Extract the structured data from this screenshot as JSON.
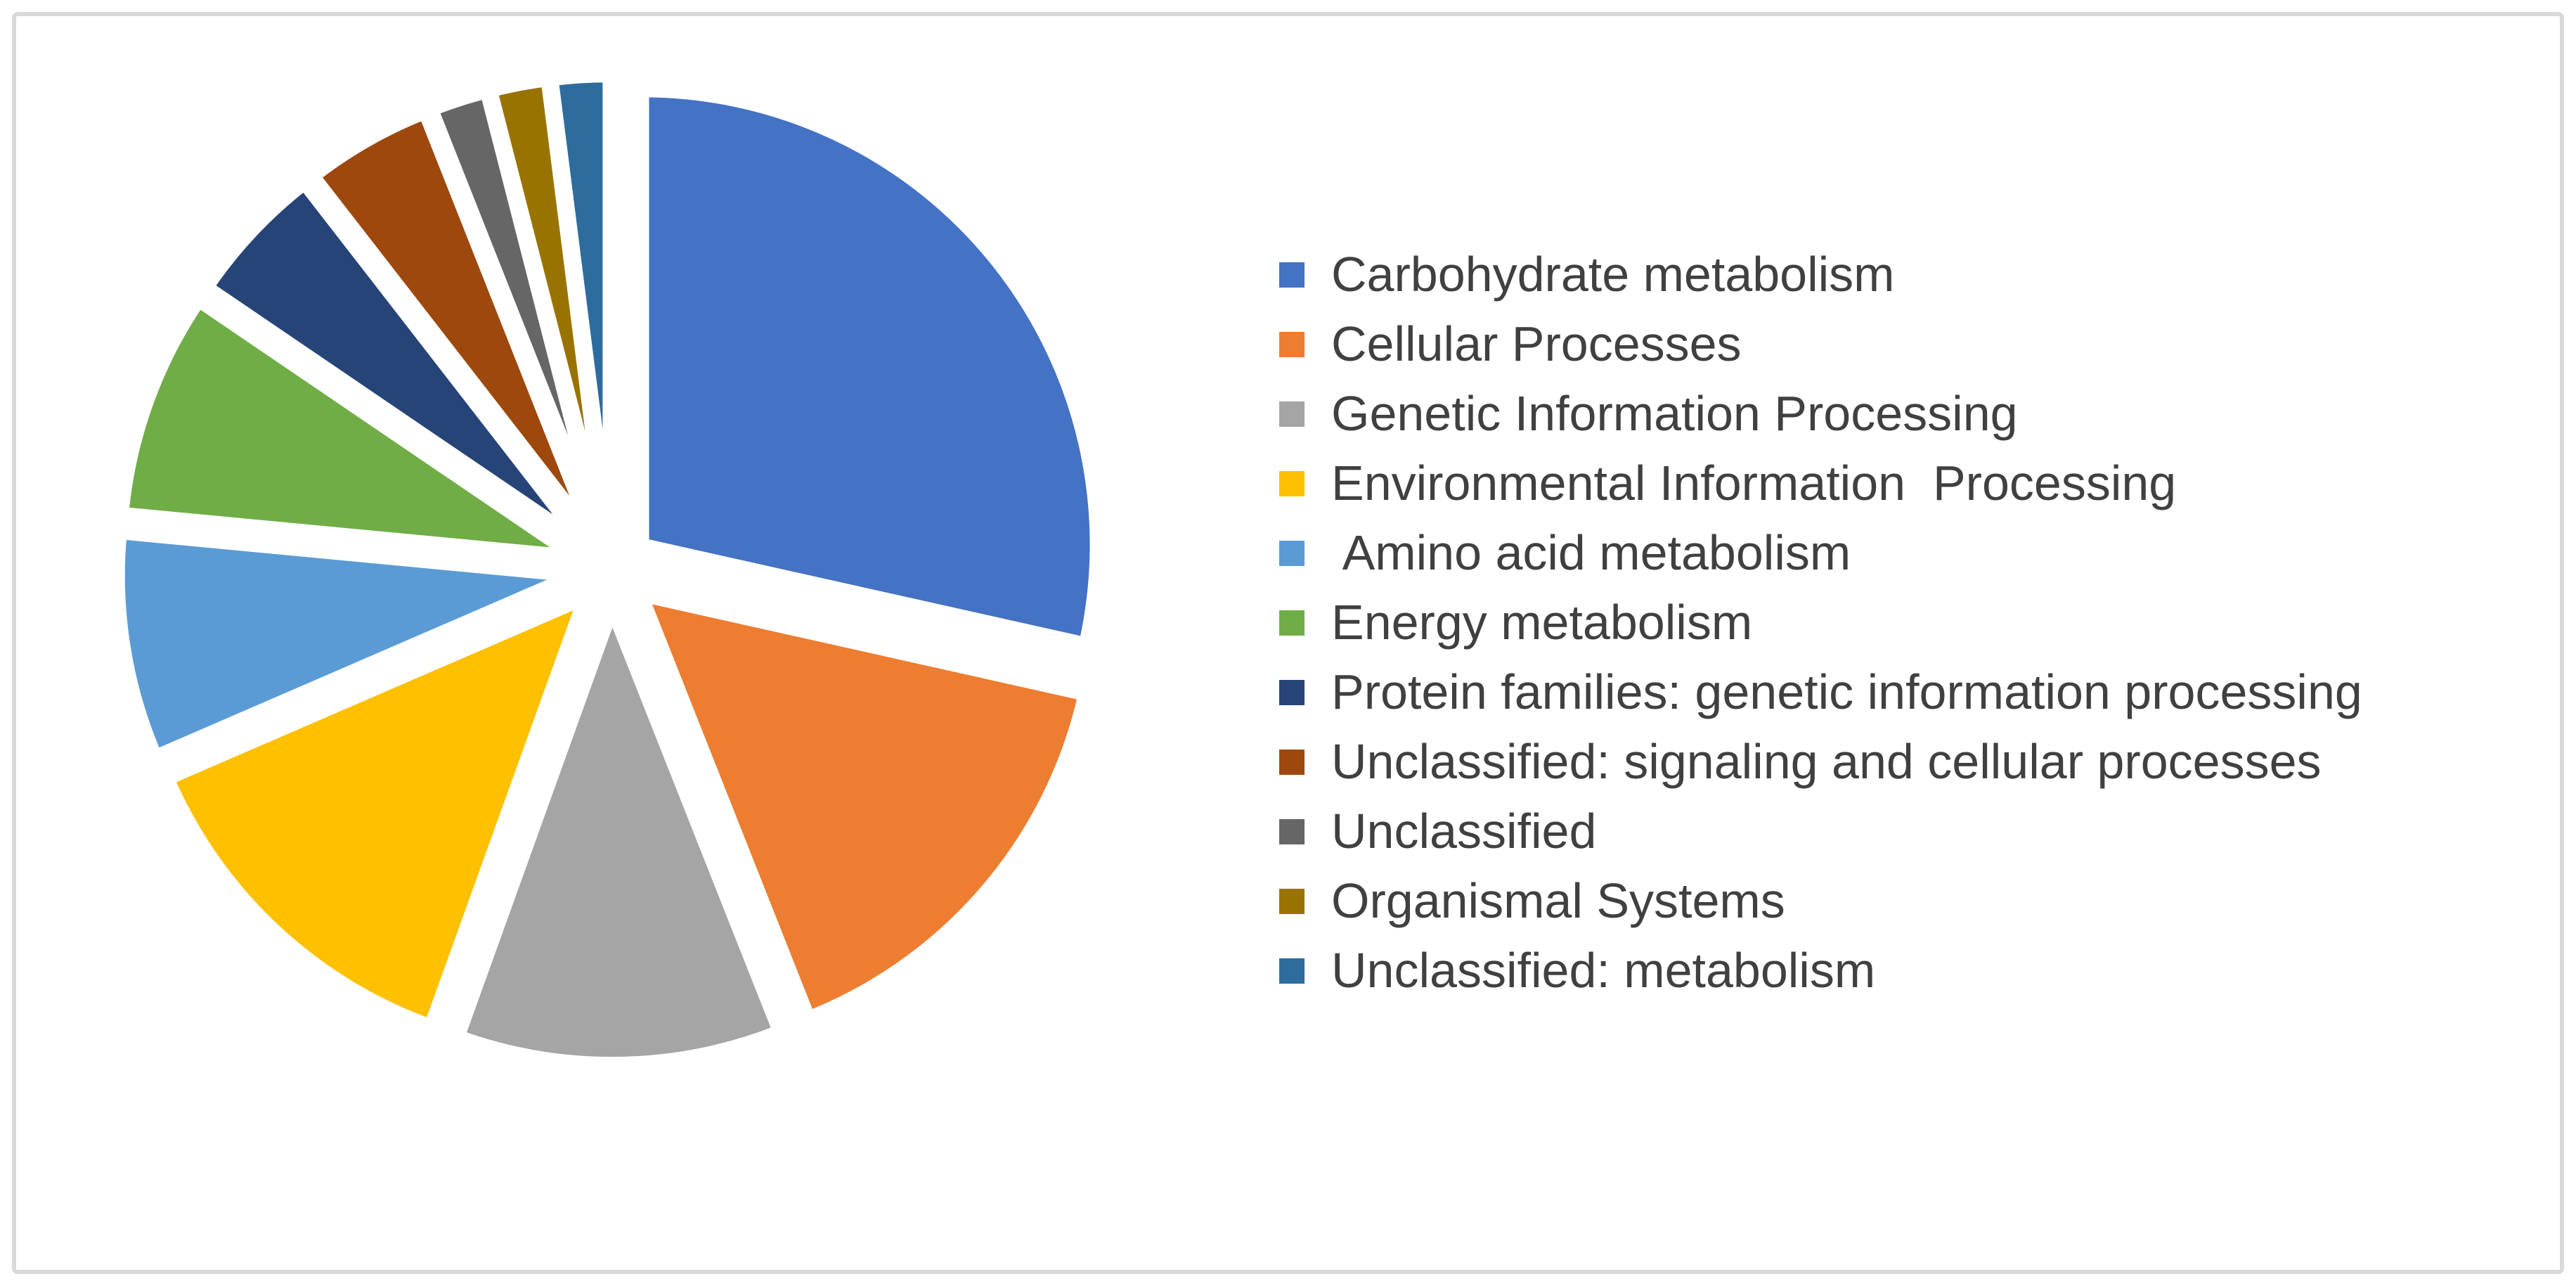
{
  "chart_data": {
    "type": "pie",
    "title": "",
    "legend_position": "right",
    "style": "exploded",
    "start_angle_deg": 0,
    "direction": "clockwise",
    "slices": [
      {
        "label": "Carbohydrate metabolism",
        "value_pct": 28.5,
        "color": "#4472C4"
      },
      {
        "label": "Cellular Processes",
        "value_pct": 15.5,
        "color": "#ED7D31"
      },
      {
        "label": "Genetic Information Processing",
        "value_pct": 11.5,
        "color": "#A5A5A5"
      },
      {
        "label": "Environmental Information  Processing",
        "value_pct": 13.0,
        "color": "#FFC000"
      },
      {
        "label": " Amino acid metabolism",
        "value_pct": 8.0,
        "color": "#5B9BD5"
      },
      {
        "label": "Energy metabolism",
        "value_pct": 8.0,
        "color": "#70AD47"
      },
      {
        "label": "Protein families: genetic information processing",
        "value_pct": 5.0,
        "color": "#264478"
      },
      {
        "label": "Unclassified: signaling and cellular processes",
        "value_pct": 4.5,
        "color": "#9E480E"
      },
      {
        "label": "Unclassified",
        "value_pct": 2.0,
        "color": "#666666"
      },
      {
        "label": "Organismal Systems",
        "value_pct": 2.0,
        "color": "#997300"
      },
      {
        "label": "Unclassified: metabolism",
        "value_pct": 2.0,
        "color": "#2E6C9E"
      }
    ]
  },
  "frame": {
    "border_color": "#D9D9D9",
    "background_color": "#FFFFFF"
  },
  "legend_text_color": "#404040"
}
